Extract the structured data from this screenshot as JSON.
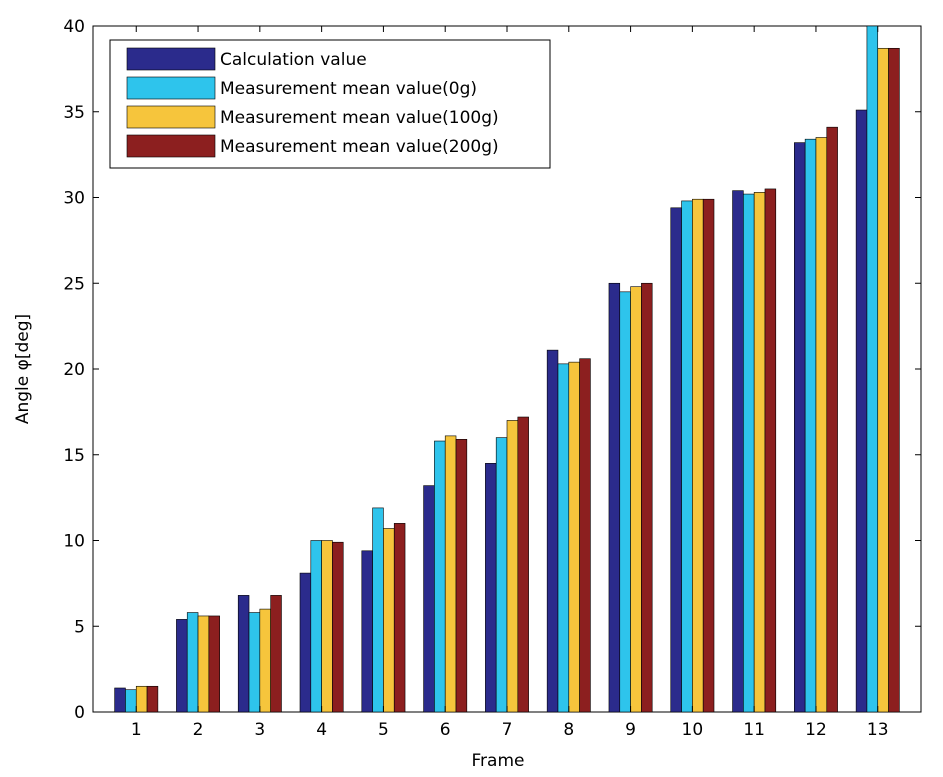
{
  "chart_data": {
    "type": "bar",
    "title": "",
    "xlabel": "Frame",
    "ylabel": "Angle φ[deg]",
    "ylim": [
      0,
      40
    ],
    "yticks": [
      0,
      5,
      10,
      15,
      20,
      25,
      30,
      35,
      40
    ],
    "categories": [
      "1",
      "2",
      "3",
      "4",
      "5",
      "6",
      "7",
      "8",
      "9",
      "10",
      "11",
      "12",
      "13"
    ],
    "grid": false,
    "legend_position": "top-left",
    "series": [
      {
        "name": "Calculation value",
        "color": "#2b2b8c",
        "values": [
          1.4,
          5.4,
          6.8,
          8.1,
          9.4,
          13.2,
          14.5,
          21.1,
          25.0,
          29.4,
          30.4,
          33.2,
          35.1
        ]
      },
      {
        "name": "Measurement mean value(0g)",
        "color": "#2ec4ec",
        "values": [
          1.3,
          5.8,
          5.8,
          10.0,
          11.9,
          15.8,
          16.0,
          20.3,
          24.5,
          29.8,
          30.2,
          33.4,
          40.0
        ]
      },
      {
        "name": "Measurement mean value(100g)",
        "color": "#f6c53c",
        "values": [
          1.5,
          5.6,
          6.0,
          10.0,
          10.7,
          16.1,
          17.0,
          20.4,
          24.8,
          29.9,
          30.3,
          33.5,
          38.7
        ]
      },
      {
        "name": "Measurement mean value(200g)",
        "color": "#8c1f1f",
        "values": [
          1.5,
          5.6,
          6.8,
          9.9,
          11.0,
          15.9,
          17.2,
          20.6,
          25.0,
          29.9,
          30.5,
          34.1,
          38.7
        ]
      }
    ]
  }
}
